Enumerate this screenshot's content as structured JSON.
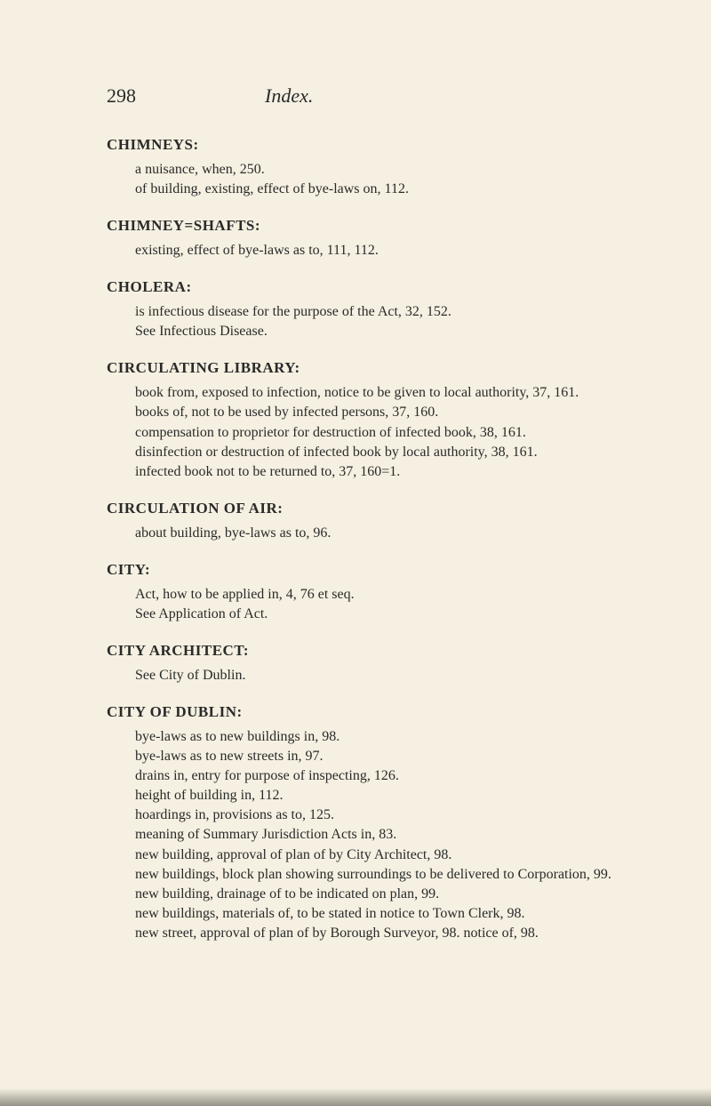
{
  "header": {
    "page_number": "298",
    "title": "Index."
  },
  "entries": [
    {
      "heading": "CHIMNEYS:",
      "lines": [
        "a nuisance, when, 250.",
        "of building, existing, effect of bye-laws on, 112."
      ]
    },
    {
      "heading": "CHIMNEY=SHAFTS:",
      "lines": [
        "existing, effect of bye-laws as to, 111, 112."
      ]
    },
    {
      "heading": "CHOLERA:",
      "lines": [
        "is infectious disease for the purpose of the Act, 32, 152.",
        "See Infectious Disease."
      ]
    },
    {
      "heading": "CIRCULATING LIBRARY:",
      "lines": [
        "book from, exposed to infection, notice to be given to local authority, 37, 161.",
        "books of, not to be used by infected persons, 37, 160.",
        "compensation to proprietor for destruction of infected book, 38, 161.",
        "disinfection or destruction of infected book by local authority, 38, 161.",
        "infected book not to be returned to, 37, 160=1."
      ]
    },
    {
      "heading": "CIRCULATION OF AIR:",
      "lines": [
        "about building, bye-laws as to, 96."
      ]
    },
    {
      "heading": "CITY:",
      "lines": [
        "Act, how to be applied in, 4, 76 et seq.",
        "See Application of Act."
      ]
    },
    {
      "heading": "CITY ARCHITECT:",
      "lines": [
        "See City of Dublin."
      ]
    },
    {
      "heading": "CITY OF DUBLIN:",
      "lines": [
        "bye-laws as to new buildings in, 98.",
        "bye-laws as to new streets in, 97.",
        "drains in, entry for purpose of inspecting, 126.",
        "height of building in, 112.",
        "hoardings in, provisions as to, 125.",
        "meaning of Summary Jurisdiction Acts in, 83.",
        "new building, approval of plan of by City Architect, 98.",
        "new buildings, block plan showing surroundings to be delivered to Corporation, 99.",
        "new building, drainage of to be indicated on plan, 99.",
        "new buildings, materials of, to be stated in notice to Town Clerk, 98.",
        "new street, approval of plan of by Borough Surveyor, 98. notice of, 98."
      ]
    }
  ]
}
